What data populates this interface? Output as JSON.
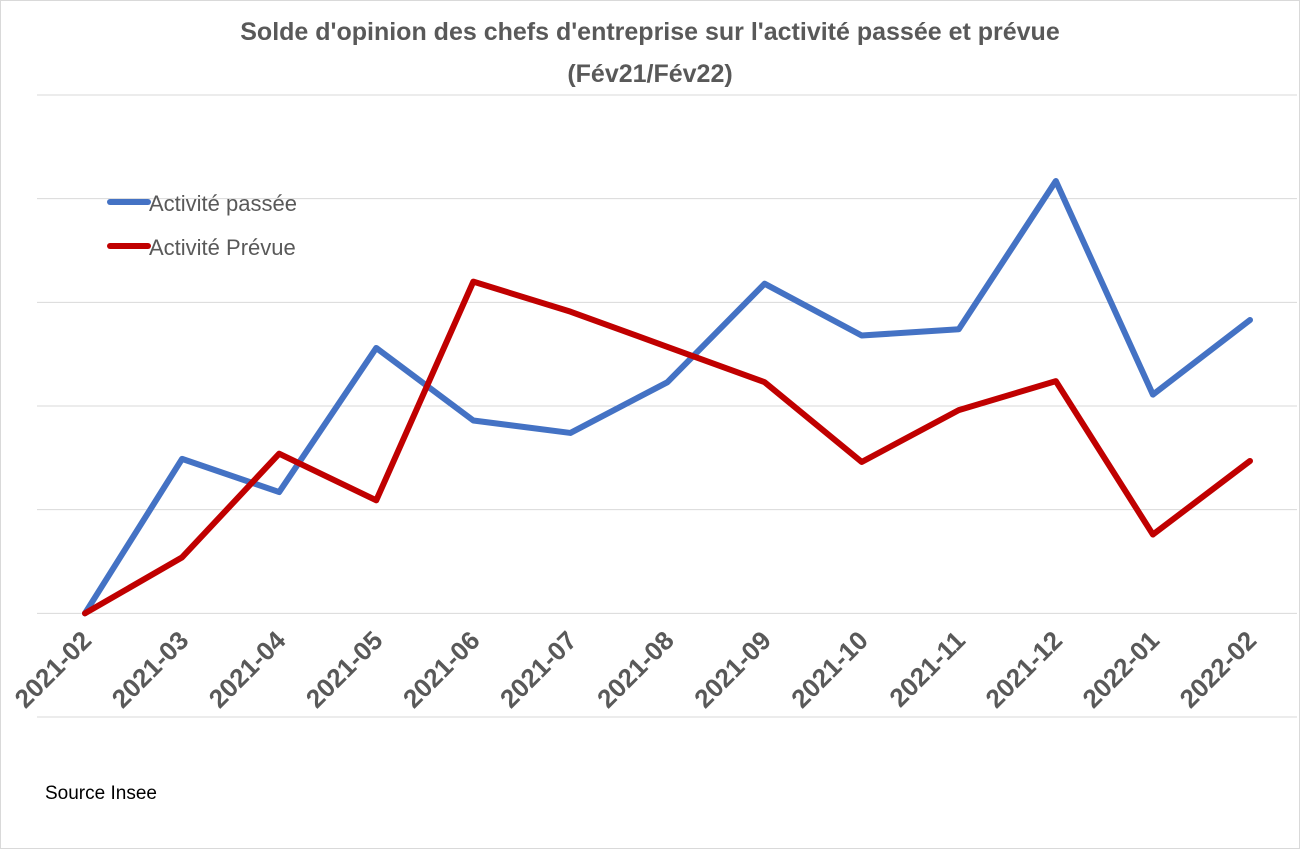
{
  "chart_data": {
    "type": "line",
    "title": "Solde d'opinion des chefs d'entreprise sur l'activité passée et prévue",
    "subtitle": "(Fév21/Fév22)",
    "xlabel": "",
    "ylabel": "",
    "categories": [
      "2021-02",
      "2021-03",
      "2021-04",
      "2021-05",
      "2021-06",
      "2021-07",
      "2021-08",
      "2021-09",
      "2021-10",
      "2021-11",
      "2021-12",
      "2022-01",
      "2022-02"
    ],
    "ylim": [
      -1,
      5
    ],
    "y_tick_labels_shown": false,
    "grid": true,
    "legend_position": "top-left",
    "series": [
      {
        "name": "Activité passée",
        "color": "#4472c4",
        "values": [
          0,
          1.49,
          1.17,
          2.56,
          1.86,
          1.74,
          2.23,
          3.18,
          2.68,
          2.74,
          4.17,
          2.11,
          2.83
        ]
      },
      {
        "name": "Activité Prévue",
        "color": "#c00000",
        "values": [
          0,
          0.54,
          1.54,
          1.09,
          3.2,
          2.91,
          2.57,
          2.23,
          1.46,
          1.96,
          2.24,
          0.76,
          1.47
        ]
      }
    ]
  },
  "footer": {
    "source": "Source Insee"
  }
}
